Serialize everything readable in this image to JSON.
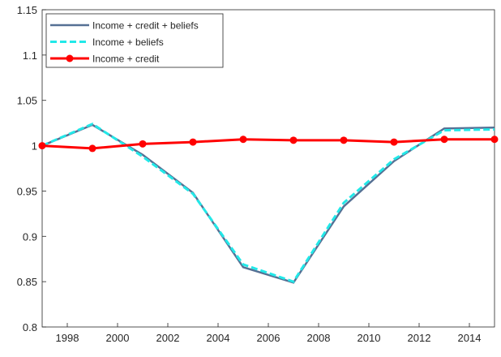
{
  "chart_data": {
    "type": "line",
    "x": [
      1997,
      1999,
      2001,
      2003,
      2005,
      2007,
      2009,
      2011,
      2013,
      2015
    ],
    "series": [
      {
        "name": "Income + credit + beliefs",
        "color": "#557094",
        "style": "solid",
        "values": [
          1,
          1.023,
          0.99,
          0.948,
          0.866,
          0.849,
          0.933,
          0.983,
          1.019,
          1.02
        ]
      },
      {
        "name": "Income + beliefs",
        "color": "#22e8e8",
        "style": "dashed",
        "values": [
          1,
          1.024,
          0.988,
          0.947,
          0.869,
          0.85,
          0.937,
          0.985,
          1.017,
          1.018
        ]
      },
      {
        "name": "Income + credit",
        "color": "#ff0000",
        "style": "solid",
        "marker": "circle",
        "values": [
          1,
          0.997,
          1.002,
          1.004,
          1.007,
          1.006,
          1.006,
          1.004,
          1.007,
          1.007
        ]
      }
    ],
    "xlim": [
      1997,
      2015
    ],
    "xticks": [
      1998,
      2000,
      2002,
      2004,
      2006,
      2008,
      2010,
      2012,
      2014
    ],
    "ylim": [
      0.8,
      1.15
    ],
    "yticks": [
      0.8,
      0.85,
      0.9,
      0.95,
      1,
      1.05,
      1.1,
      1.15
    ],
    "grid": false,
    "legend": "upper-left"
  }
}
